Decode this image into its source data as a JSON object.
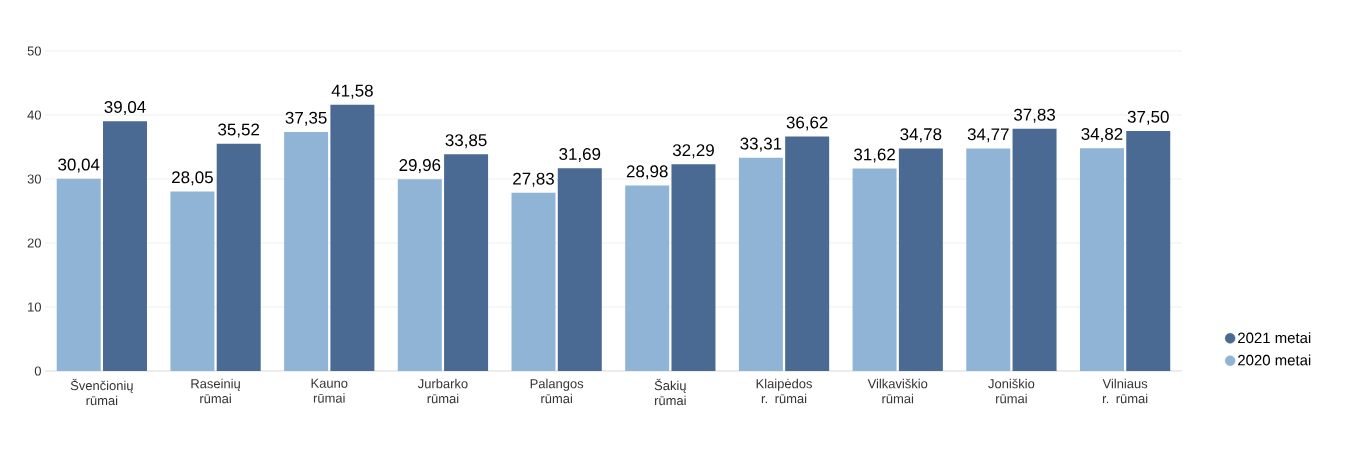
{
  "chart_data": {
    "type": "bar",
    "categories": [
      "Švenčionių rūmai",
      "Raseinių rūmai",
      "Kauno rūmai",
      "Jurbarko rūmai",
      "Palangos rūmai",
      "Šakių rūmai",
      "Klaipėdos r. rūmai",
      "Vilkaviškio rūmai",
      "Joniškio rūmai",
      "Vilniaus r. rūmai"
    ],
    "series": [
      {
        "name": "2020 metai",
        "color": "#8fb4d6",
        "values": [
          30.04,
          28.05,
          37.35,
          29.96,
          27.83,
          28.98,
          33.31,
          31.62,
          34.77,
          34.82
        ],
        "value_labels": [
          "30,04",
          "28,05",
          "37,35",
          "29,96",
          "27,83",
          "28,98",
          "33,31",
          "31,62",
          "34,77",
          "34,82"
        ]
      },
      {
        "name": "2021 metai",
        "color": "#4a6a93",
        "values": [
          39.04,
          35.52,
          41.58,
          33.85,
          31.69,
          32.29,
          36.62,
          34.78,
          37.83,
          37.5
        ],
        "value_labels": [
          "39,04",
          "35,52",
          "41,58",
          "33,85",
          "31,69",
          "32,29",
          "36,62",
          "34,78",
          "37,83",
          "37,50"
        ]
      }
    ],
    "ylim": [
      0,
      50
    ],
    "yticks": [
      0,
      10,
      20,
      30,
      40,
      50
    ],
    "grid": "y",
    "legend": "right"
  }
}
